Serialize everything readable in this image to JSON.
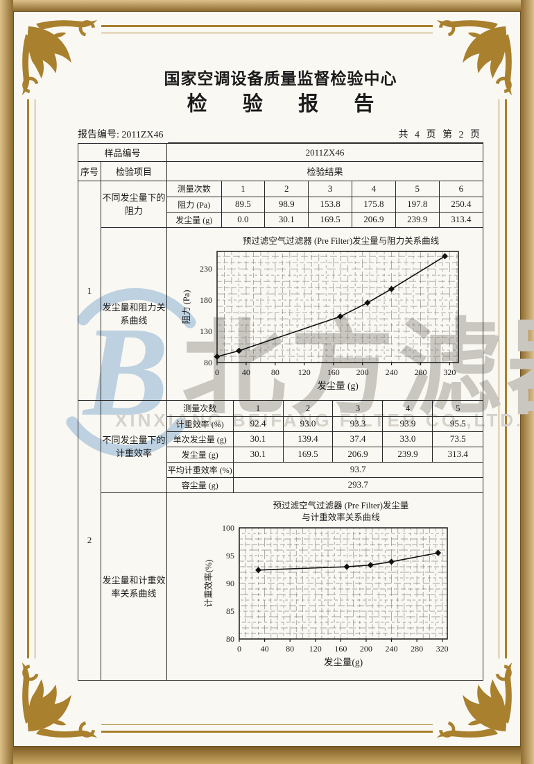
{
  "header": {
    "center_name": "国家空调设备质量监督检验中心",
    "report_title": "检 验 报 告",
    "report_no": "报告编号: 2011ZX46",
    "page_info": "共 4 页 第 2 页"
  },
  "table": {
    "sample_no_label": "样品编号",
    "sample_no_value": "2011ZX46",
    "col_seq": "序号",
    "col_item": "检验项目",
    "col_result": "检验结果"
  },
  "sections": [
    {
      "seq": "1",
      "item_table": "不同发尘量下的阻力",
      "item_chart": "发尘量和阻力关系曲线",
      "table": {
        "header_label": "测量次数",
        "header_values": [
          "1",
          "2",
          "3",
          "4",
          "5",
          "6"
        ],
        "rows": [
          {
            "label": "阻力 (Pa)",
            "values": [
              "89.5",
              "98.9",
              "153.8",
              "175.8",
              "197.8",
              "250.4"
            ]
          },
          {
            "label": "发尘量 (g)",
            "values": [
              "0.0",
              "30.1",
              "169.5",
              "206.9",
              "239.9",
              "313.4"
            ]
          }
        ]
      }
    },
    {
      "seq": "2",
      "item_table": "不同发尘量下的计重效率",
      "item_chart": "发尘量和计重效率关系曲线",
      "table": {
        "header_label": "测量次数",
        "header_values": [
          "1",
          "2",
          "3",
          "4",
          "5"
        ],
        "rows": [
          {
            "label": "计重效率 (%)",
            "values": [
              "92.4",
              "93.0",
              "93.3",
              "93.9",
              "95.5"
            ]
          },
          {
            "label": "单次发尘量 (g)",
            "values": [
              "30.1",
              "139.4",
              "37.4",
              "33.0",
              "73.5"
            ]
          },
          {
            "label": "发尘量 (g)",
            "values": [
              "30.1",
              "169.5",
              "206.9",
              "239.9",
              "313.4"
            ]
          }
        ],
        "summary_rows": [
          {
            "label": "平均计重效率 (%)",
            "value": "93.7"
          },
          {
            "label": "容尘量 (g)",
            "value": "293.7"
          }
        ]
      }
    }
  ],
  "chart_data": [
    {
      "type": "line",
      "title": "预过滤空气过滤器 (Pre Filter)发尘量与阻力关系曲线",
      "xlabel": "发尘量 (g)",
      "ylabel": "阻力 (Pa)",
      "x": [
        0.0,
        30.1,
        169.5,
        206.9,
        239.9,
        313.4
      ],
      "y": [
        89.5,
        98.9,
        153.8,
        175.8,
        197.8,
        250.4
      ],
      "xlim": [
        0,
        332
      ],
      "ylim": [
        80,
        258
      ],
      "xticks": [
        0,
        40,
        80,
        120,
        160,
        200,
        240,
        280,
        320
      ],
      "yticks": [
        80,
        130,
        180,
        230
      ],
      "x_minor": 10,
      "y_minor": 10,
      "grid": true,
      "legend": false
    },
    {
      "type": "line",
      "title": "预过滤空气过滤器 (Pre Filter)发尘量",
      "title2": "与计重效率关系曲线",
      "xlabel": "发尘量(g)",
      "ylabel": "计重效率(%)",
      "x": [
        30.1,
        169.5,
        206.9,
        239.9,
        313.4
      ],
      "y": [
        92.4,
        93.0,
        93.3,
        93.9,
        95.5
      ],
      "xlim": [
        0,
        328
      ],
      "ylim": [
        80,
        100
      ],
      "xticks": [
        0,
        40,
        80,
        120,
        160,
        200,
        240,
        280,
        320
      ],
      "yticks": [
        80,
        85,
        90,
        95,
        100
      ],
      "x_minor": 10,
      "y_minor": 1,
      "grid": true,
      "legend": false
    }
  ],
  "watermark": {
    "logo_letter": "B",
    "name_cn": "北方滤器",
    "name_en": "XINXIANG BEIFANG FILTER CO.,LTD."
  },
  "colors": {
    "frame_gold": "#a9802e",
    "frame_band": "#b08f4f",
    "watermark_blue": "#b7cde0",
    "watermark_gray": "#cac7c1",
    "ink": "#1a1a1a"
  }
}
